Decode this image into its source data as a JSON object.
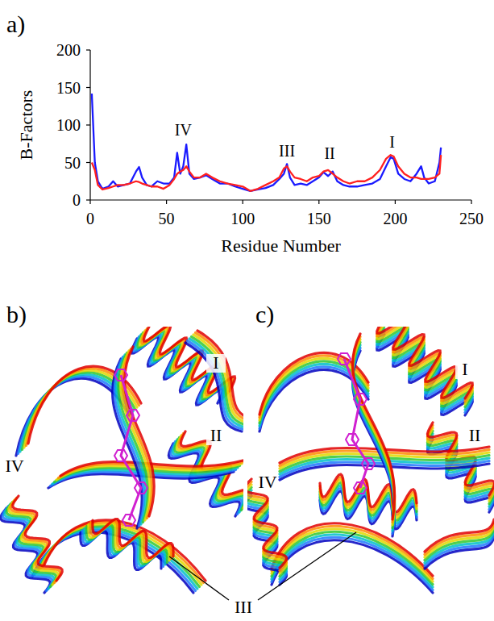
{
  "chart_data": {
    "type": "line",
    "title": "a)",
    "x_label": "Residue Number",
    "y_label": "B-Factors",
    "xlim": [
      0,
      250
    ],
    "xticks": [
      0,
      50,
      100,
      150,
      200,
      250
    ],
    "ylim": [
      0,
      200
    ],
    "yticks": [
      0,
      50,
      100,
      150,
      200
    ],
    "grid": false,
    "x": [
      1,
      3,
      5,
      8,
      12,
      15,
      18,
      22,
      26,
      30,
      32,
      34,
      37,
      40,
      44,
      48,
      52,
      55,
      57,
      59,
      61,
      63,
      65,
      68,
      72,
      76,
      80,
      85,
      90,
      95,
      100,
      105,
      110,
      115,
      120,
      124,
      127,
      129,
      131,
      134,
      138,
      142,
      146,
      150,
      153,
      156,
      159,
      162,
      166,
      170,
      175,
      180,
      185,
      190,
      194,
      197,
      199,
      202,
      206,
      210,
      214,
      217,
      219,
      222,
      226,
      229,
      230
    ],
    "series": [
      {
        "color": "#1a1aff",
        "values": [
          142,
          50,
          25,
          15,
          18,
          25,
          18,
          20,
          22,
          38,
          44,
          30,
          20,
          18,
          25,
          22,
          22,
          30,
          63,
          35,
          45,
          74,
          35,
          28,
          30,
          33,
          28,
          22,
          22,
          18,
          15,
          12,
          14,
          16,
          20,
          28,
          35,
          48,
          30,
          20,
          22,
          20,
          25,
          30,
          37,
          32,
          38,
          25,
          20,
          18,
          18,
          20,
          22,
          28,
          45,
          57,
          55,
          35,
          28,
          25,
          35,
          45,
          30,
          22,
          25,
          50,
          70
        ]
      },
      {
        "color": "#ff2020",
        "values": [
          50,
          40,
          20,
          14,
          16,
          18,
          20,
          20,
          22,
          25,
          24,
          22,
          20,
          18,
          18,
          15,
          20,
          28,
          35,
          38,
          40,
          45,
          38,
          30,
          30,
          35,
          30,
          25,
          22,
          20,
          18,
          12,
          15,
          20,
          25,
          30,
          42,
          45,
          38,
          30,
          28,
          25,
          30,
          32,
          38,
          40,
          35,
          30,
          25,
          22,
          25,
          25,
          30,
          40,
          55,
          60,
          58,
          45,
          35,
          30,
          30,
          28,
          28,
          28,
          30,
          35,
          60
        ]
      }
    ],
    "annotations": [
      {
        "text": "IV",
        "x": 61,
        "y": 86
      },
      {
        "text": "III",
        "x": 129,
        "y": 58
      },
      {
        "text": "II",
        "x": 157,
        "y": 55
      },
      {
        "text": "I",
        "x": 198,
        "y": 70
      }
    ]
  },
  "structure_panels": [
    {
      "label": "b)",
      "regions": [
        "I",
        "II",
        "IV"
      ]
    },
    {
      "label": "c)",
      "regions": [
        "I",
        "II",
        "IV"
      ]
    }
  ],
  "shared_region": "III"
}
